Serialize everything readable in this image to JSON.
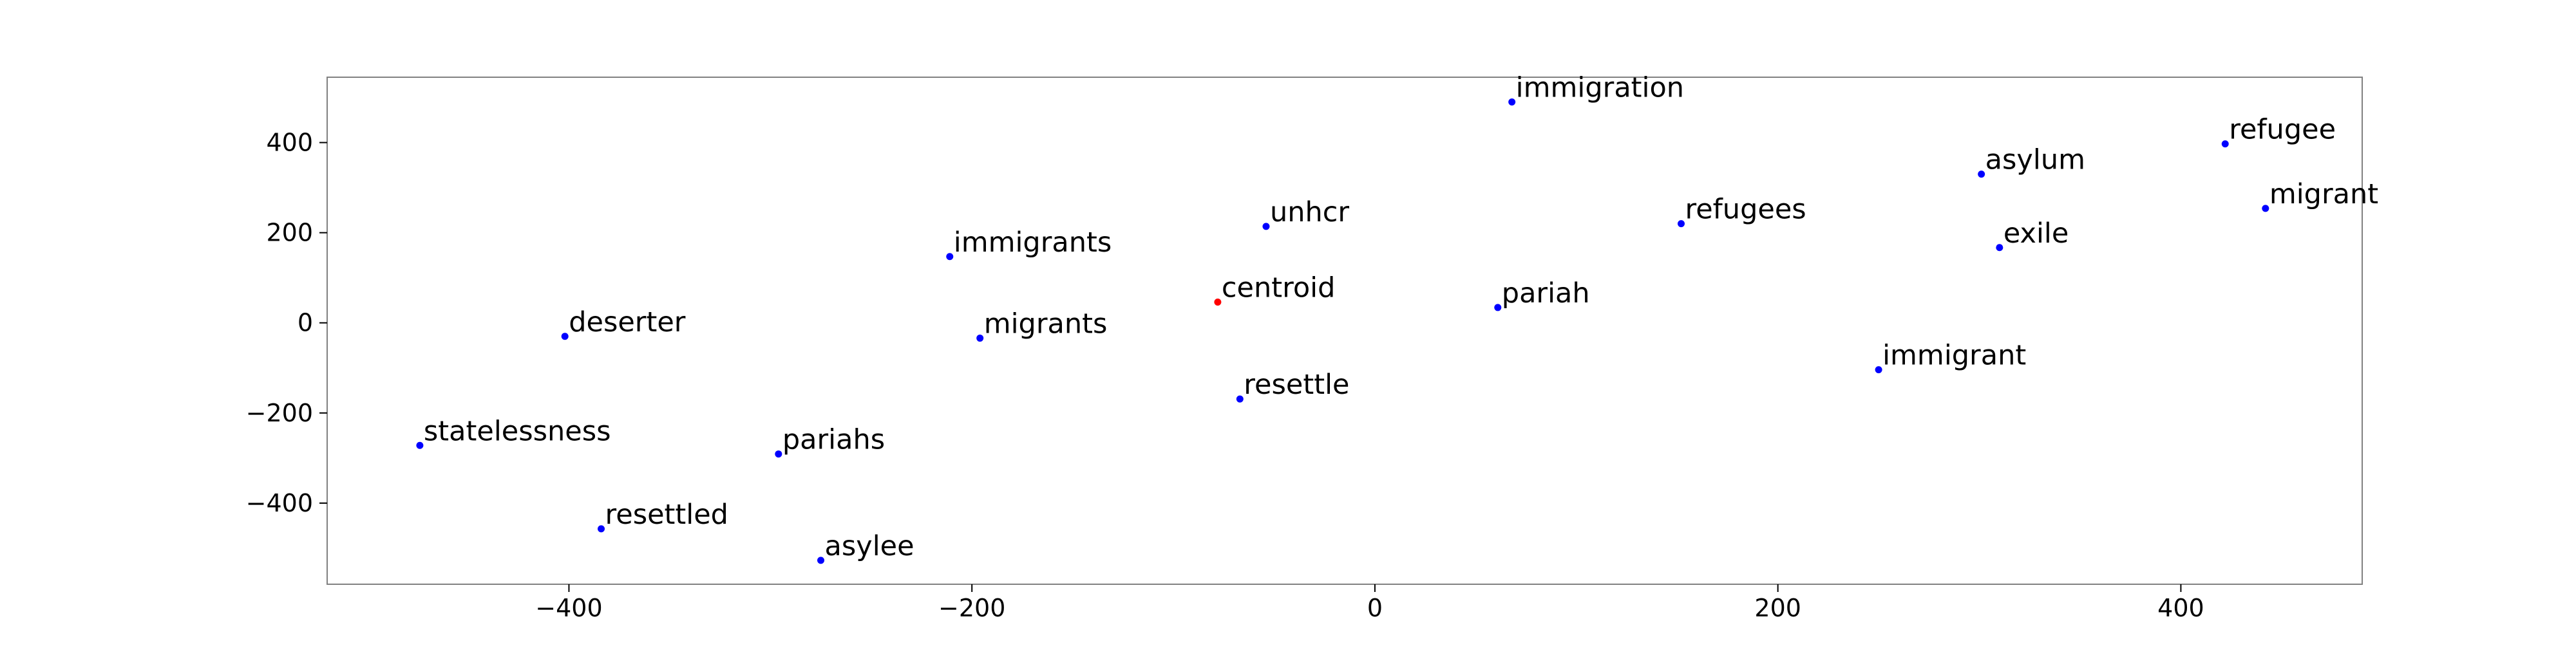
{
  "chart_data": {
    "type": "scatter",
    "title": "",
    "xlabel": "",
    "ylabel": "",
    "xlim": [
      -520,
      490
    ],
    "ylim": [
      -580,
      545
    ],
    "grid": false,
    "x_ticks": [
      {
        "value": -400,
        "label": "−400"
      },
      {
        "value": -200,
        "label": "−200"
      },
      {
        "value": 0,
        "label": "0"
      },
      {
        "value": 200,
        "label": "200"
      },
      {
        "value": 400,
        "label": "400"
      }
    ],
    "y_ticks": [
      {
        "value": -400,
        "label": "−400"
      },
      {
        "value": -200,
        "label": "−200"
      },
      {
        "value": 0,
        "label": "0"
      },
      {
        "value": 200,
        "label": "200"
      },
      {
        "value": 400,
        "label": "400"
      }
    ],
    "colors": {
      "point": "#0000ff",
      "centroid": "#ff0000",
      "axis": "#000000",
      "frame": "#808080"
    },
    "points": [
      {
        "label": "immigration",
        "x": 68,
        "y": 490,
        "color": "#0000ff"
      },
      {
        "label": "refugee",
        "x": 422,
        "y": 397,
        "color": "#0000ff"
      },
      {
        "label": "asylum",
        "x": 301,
        "y": 330,
        "color": "#0000ff"
      },
      {
        "label": "migrant",
        "x": 442,
        "y": 254,
        "color": "#0000ff"
      },
      {
        "label": "unhcr",
        "x": -54,
        "y": 214,
        "color": "#0000ff"
      },
      {
        "label": "refugees",
        "x": 152,
        "y": 220,
        "color": "#0000ff"
      },
      {
        "label": "exile",
        "x": 310,
        "y": 167,
        "color": "#0000ff"
      },
      {
        "label": "immigrants",
        "x": -211,
        "y": 147,
        "color": "#0000ff"
      },
      {
        "label": "centroid",
        "x": -78,
        "y": 46,
        "color": "#ff0000"
      },
      {
        "label": "pariah",
        "x": 61,
        "y": 34,
        "color": "#0000ff"
      },
      {
        "label": "deserter",
        "x": -402,
        "y": -30,
        "color": "#0000ff"
      },
      {
        "label": "migrants",
        "x": -196,
        "y": -34,
        "color": "#0000ff"
      },
      {
        "label": "immigrant",
        "x": 250,
        "y": -104,
        "color": "#0000ff"
      },
      {
        "label": "resettle",
        "x": -67,
        "y": -169,
        "color": "#0000ff"
      },
      {
        "label": "statelessness",
        "x": -474,
        "y": -272,
        "color": "#0000ff"
      },
      {
        "label": "pariahs",
        "x": -296,
        "y": -291,
        "color": "#0000ff"
      },
      {
        "label": "resettled",
        "x": -384,
        "y": -457,
        "color": "#0000ff"
      },
      {
        "label": "asylee",
        "x": -275,
        "y": -527,
        "color": "#0000ff"
      }
    ]
  }
}
